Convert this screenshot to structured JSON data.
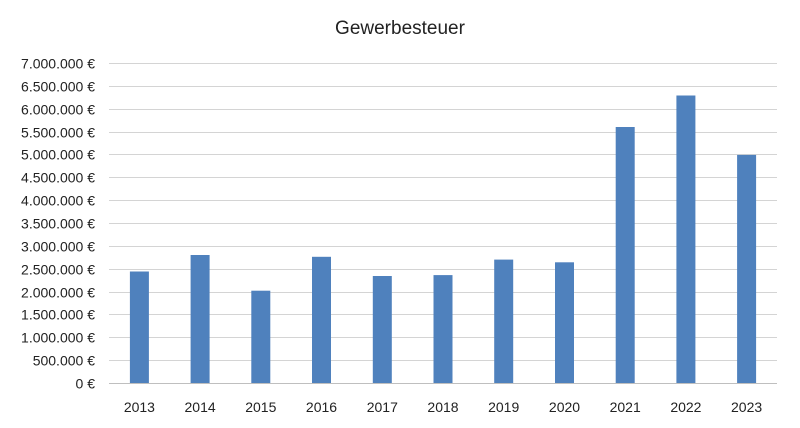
{
  "chart_data": {
    "type": "bar",
    "title": "Gewerbesteuer",
    "xlabel": "",
    "ylabel": "",
    "categories": [
      "2013",
      "2014",
      "2015",
      "2016",
      "2017",
      "2018",
      "2019",
      "2020",
      "2021",
      "2022",
      "2023"
    ],
    "series": [
      {
        "values": [
          2440000,
          2800000,
          2020000,
          2760000,
          2340000,
          2360000,
          2700000,
          2640000,
          5600000,
          6290000,
          4990000
        ],
        "color": "#4f81bd"
      }
    ],
    "ylim": [
      0,
      7000000
    ],
    "yticks": [
      0,
      500000,
      1000000,
      1500000,
      2000000,
      2500000,
      3000000,
      3500000,
      4000000,
      4500000,
      5000000,
      5500000,
      6000000,
      6500000,
      7000000
    ],
    "ytick_labels": [
      "0 €",
      "500.000 €",
      "1.000.000 €",
      "1.500.000 €",
      "2.000.000 €",
      "2.500.000 €",
      "3.000.000 €",
      "3.500.000 €",
      "4.000.000 €",
      "4.500.000 €",
      "5.000.000 €",
      "5.500.000 €",
      "6.000.000 €",
      "6.500.000 €",
      "7.000.000 €"
    ],
    "grid": true,
    "legend": "none"
  }
}
